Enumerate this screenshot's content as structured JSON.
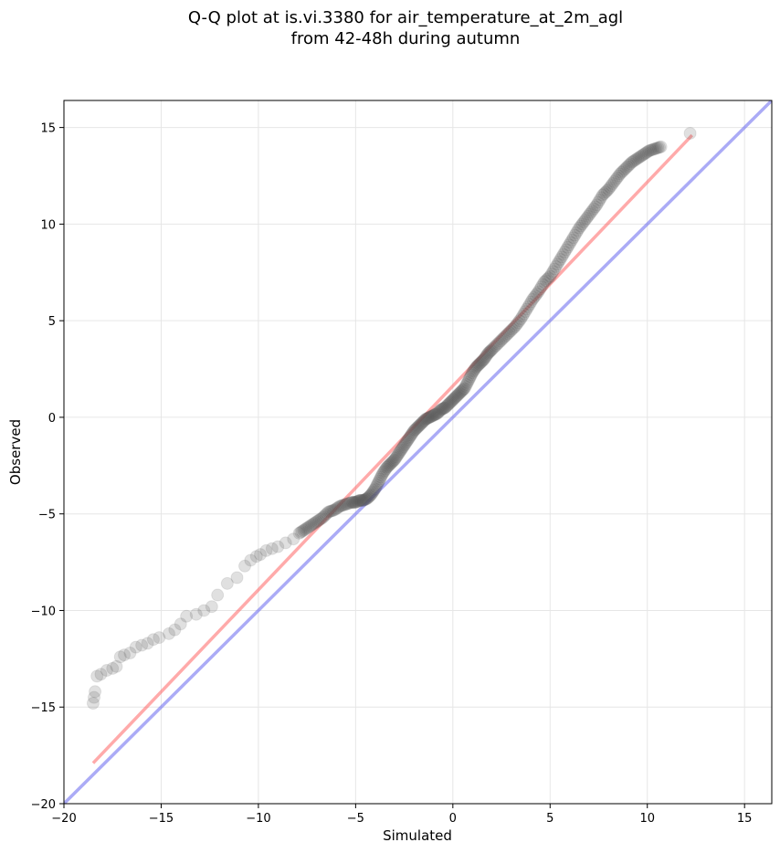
{
  "chart_data": {
    "type": "scatter",
    "title_line1": "Q-Q plot at is.vi.3380 for air_temperature_at_2m_agl",
    "title_line2": "from 42-48h during autumn",
    "xlabel": "Simulated",
    "ylabel": "Observed",
    "xlim": [
      -20,
      16.4
    ],
    "ylim": [
      -20,
      16.4
    ],
    "xticks": [
      -20,
      -15,
      -10,
      -5,
      0,
      5,
      10,
      15
    ],
    "yticks": [
      -20,
      -15,
      -10,
      -5,
      0,
      5,
      10,
      15
    ],
    "xtick_labels": [
      "−20",
      "−15",
      "−10",
      "−5",
      "0",
      "5",
      "10",
      "15"
    ],
    "ytick_labels": [
      "−20",
      "−15",
      "−10",
      "−5",
      "0",
      "5",
      "10",
      "15"
    ],
    "grid": true,
    "colors": {
      "points": "#555555",
      "fit_line": "#ff5555",
      "identity_line": "#6666ee"
    },
    "quantiles": {
      "x": [
        -18.5,
        -18.45,
        -18.4,
        -18.3,
        -18.1,
        -17.8,
        -17.5,
        -17.3,
        -17.1,
        -16.9,
        -16.6,
        -16.3,
        -16.0,
        -15.7,
        -15.4,
        -15.1,
        -14.6,
        -14.3,
        -14.0,
        -13.7,
        -13.2,
        -12.8,
        -12.4,
        -12.1,
        -11.6,
        -11.1,
        -10.7,
        -10.4,
        -10.1,
        -9.9,
        -9.6,
        -9.3,
        -9.0,
        -8.6,
        -8.2,
        -7.9,
        -7.6,
        -7.3,
        -7.0,
        -6.7,
        -6.4,
        -6.1,
        -5.8,
        -5.5,
        -5.2,
        -5.0,
        -4.8,
        -4.6,
        -4.4,
        -4.2,
        -4.0,
        -3.8,
        -3.6,
        -3.4,
        -3.2,
        -3.0,
        -2.8,
        -2.6,
        -2.4,
        -2.2,
        -2.0,
        -1.8,
        -1.6,
        -1.4,
        -1.2,
        -1.0,
        -0.8,
        -0.6,
        -0.4,
        -0.2,
        0.0,
        0.2,
        0.4,
        0.6,
        0.8,
        1.0,
        1.2,
        1.4,
        1.6,
        1.8,
        2.0,
        2.3,
        2.6,
        2.9,
        3.2,
        3.5,
        3.8,
        4.1,
        4.4,
        4.7,
        5.0,
        5.3,
        5.6,
        5.9,
        6.2,
        6.5,
        6.8,
        7.1,
        7.4,
        7.7,
        8.0,
        8.3,
        8.6,
        8.9,
        9.2,
        9.5,
        9.8,
        10.1,
        10.4,
        10.7,
        12.2
      ],
      "y": [
        -14.8,
        -14.5,
        -14.2,
        -13.4,
        -13.3,
        -13.1,
        -13.0,
        -12.9,
        -12.4,
        -12.3,
        -12.2,
        -11.9,
        -11.8,
        -11.7,
        -11.5,
        -11.4,
        -11.2,
        -11.0,
        -10.7,
        -10.3,
        -10.2,
        -10.0,
        -9.8,
        -9.2,
        -8.6,
        -8.3,
        -7.7,
        -7.4,
        -7.2,
        -7.1,
        -6.9,
        -6.8,
        -6.7,
        -6.5,
        -6.3,
        -6.0,
        -5.8,
        -5.6,
        -5.4,
        -5.2,
        -4.9,
        -4.8,
        -4.6,
        -4.5,
        -4.4,
        -4.4,
        -4.3,
        -4.3,
        -4.2,
        -4.0,
        -3.7,
        -3.3,
        -2.9,
        -2.6,
        -2.4,
        -2.2,
        -1.9,
        -1.6,
        -1.3,
        -1.0,
        -0.7,
        -0.5,
        -0.3,
        -0.1,
        0.0,
        0.1,
        0.2,
        0.4,
        0.5,
        0.7,
        0.9,
        1.1,
        1.3,
        1.5,
        1.9,
        2.3,
        2.6,
        2.8,
        3.0,
        3.3,
        3.5,
        3.8,
        4.1,
        4.4,
        4.7,
        5.1,
        5.6,
        6.1,
        6.5,
        7.0,
        7.3,
        7.8,
        8.3,
        8.8,
        9.3,
        9.8,
        10.2,
        10.6,
        11.0,
        11.5,
        11.8,
        12.2,
        12.6,
        12.9,
        13.2,
        13.4,
        13.6,
        13.8,
        13.9,
        14.0,
        14.7
      ]
    },
    "fit_line": {
      "x": [
        -18.5,
        12.3
      ],
      "y": [
        -17.9,
        14.6
      ]
    },
    "identity_line": {
      "x": [
        -20,
        16.4
      ],
      "y": [
        -20,
        16.4
      ]
    }
  }
}
